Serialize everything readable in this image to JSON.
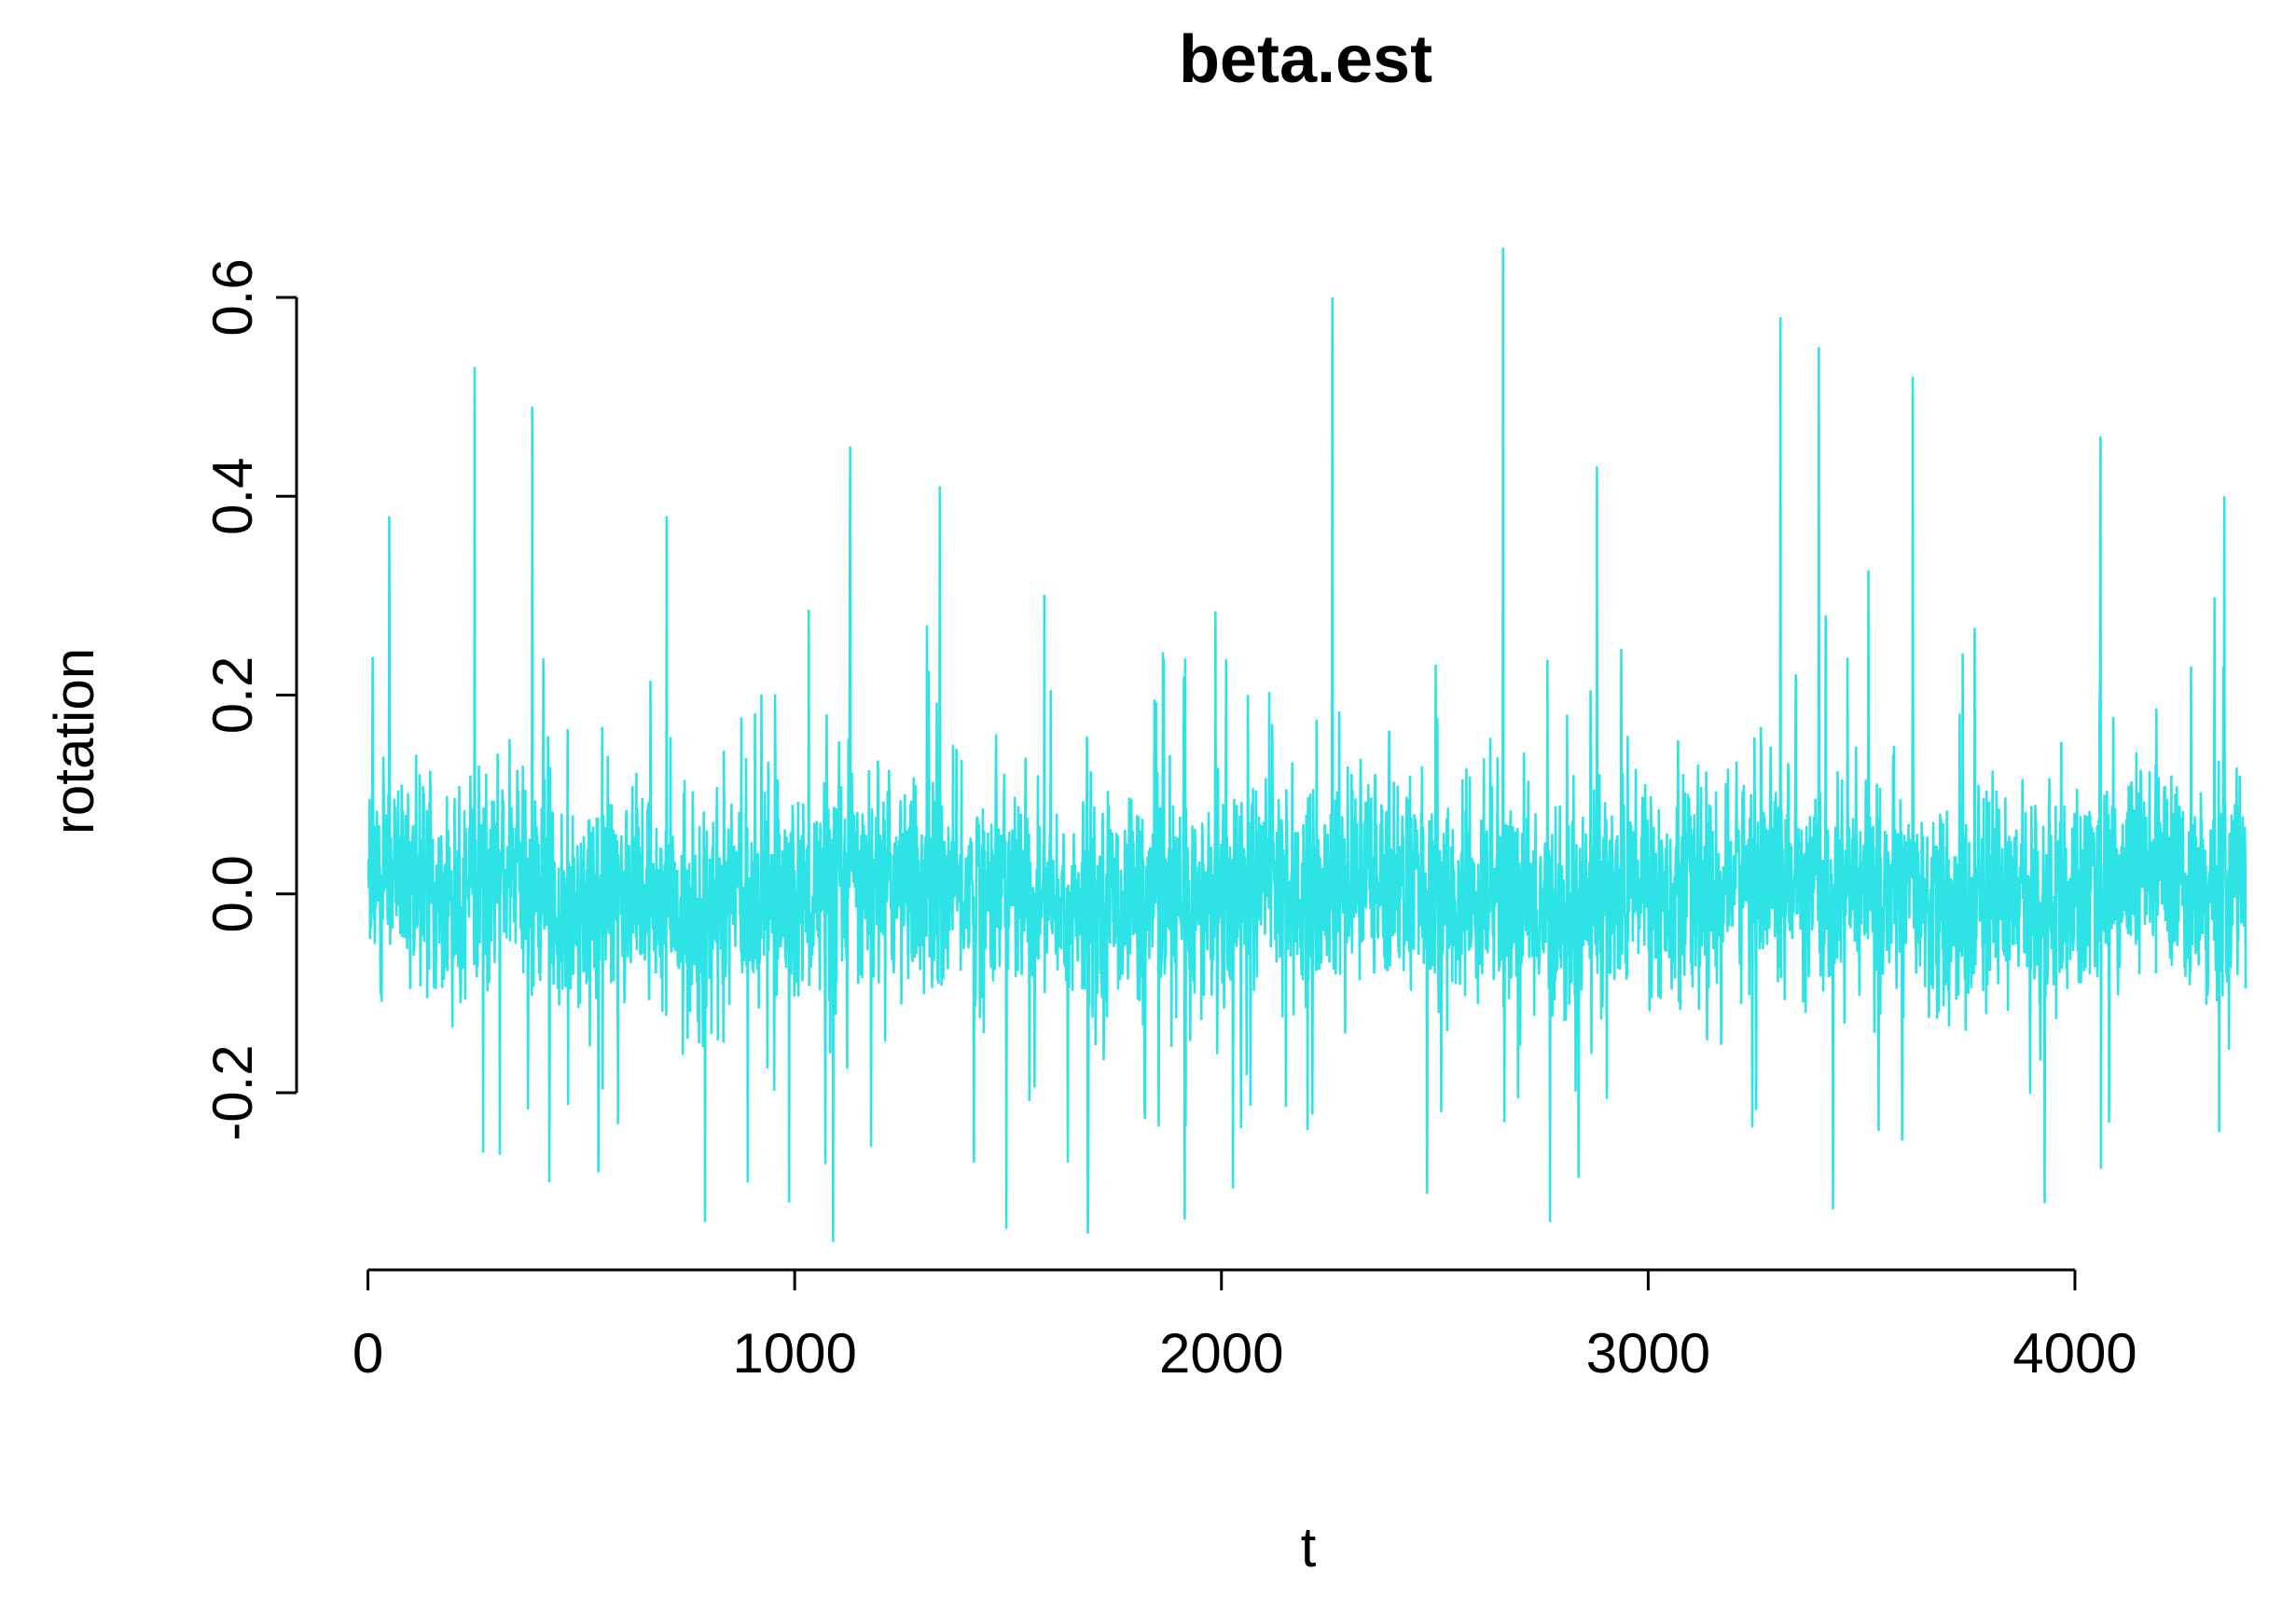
{
  "chart_data": {
    "type": "line",
    "title": "beta.est",
    "xlabel": "t",
    "ylabel": "rotation",
    "xlim": [
      1,
      4400
    ],
    "ylim": [
      -0.35,
      0.66
    ],
    "x_ticks": [
      0,
      1000,
      2000,
      3000,
      4000
    ],
    "x_tick_labels": [
      "0",
      "1000",
      "2000",
      "3000",
      "4000"
    ],
    "y_ticks": [
      -0.2,
      0.0,
      0.2,
      0.4,
      0.6
    ],
    "y_tick_labels": [
      "-0.2",
      "0.0",
      "0.2",
      "0.4",
      "0.6"
    ],
    "grid": false,
    "legend": "none",
    "series": [
      {
        "color": "#2de3e6",
        "n_points": 4400,
        "band_amplitude_approx": 0.07,
        "peaks": [
          {
            "x": 50,
            "y": 0.38
          },
          {
            "x": 250,
            "y": 0.53
          },
          {
            "x": 385,
            "y": 0.49
          },
          {
            "x": 700,
            "y": 0.38
          },
          {
            "x": 1130,
            "y": 0.45
          },
          {
            "x": 1340,
            "y": 0.41
          },
          {
            "x": 2260,
            "y": 0.6
          },
          {
            "x": 2660,
            "y": 0.65
          },
          {
            "x": 2880,
            "y": 0.43
          },
          {
            "x": 3310,
            "y": 0.58
          },
          {
            "x": 3400,
            "y": 0.55
          },
          {
            "x": 3620,
            "y": 0.52
          },
          {
            "x": 4060,
            "y": 0.46
          },
          {
            "x": 4350,
            "y": 0.4
          }
        ],
        "troughs": [
          {
            "x": 270,
            "y": -0.26
          },
          {
            "x": 425,
            "y": -0.29
          },
          {
            "x": 540,
            "y": -0.28
          },
          {
            "x": 790,
            "y": -0.33
          },
          {
            "x": 890,
            "y": -0.29
          },
          {
            "x": 1090,
            "y": -0.35
          },
          {
            "x": 1420,
            "y": -0.27
          },
          {
            "x": 1640,
            "y": -0.27
          },
          {
            "x": 2770,
            "y": -0.33
          },
          {
            "x": 4080,
            "y": -0.23
          }
        ]
      }
    ]
  }
}
